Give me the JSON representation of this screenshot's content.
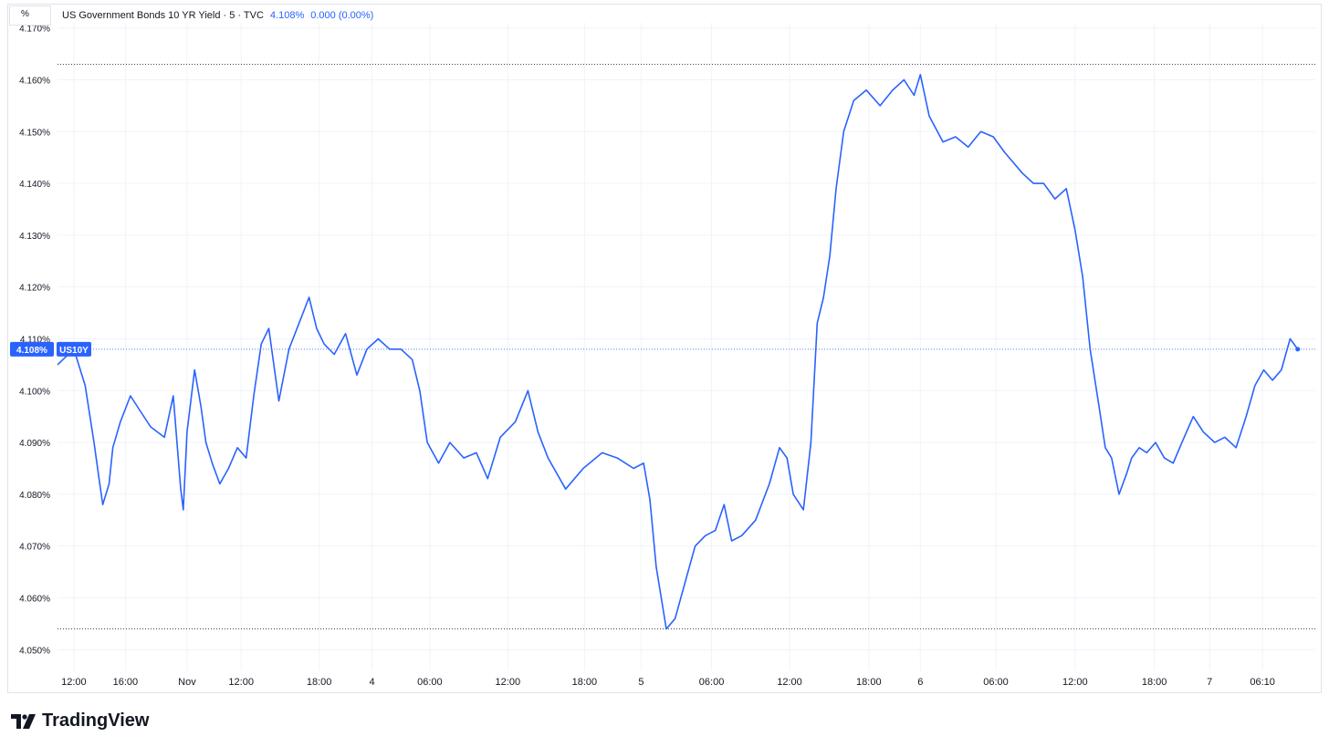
{
  "header": {
    "unit_button": "%",
    "symbol_title": "US Government Bonds 10 YR Yield · 5 · TVC",
    "last_value": "4.108%",
    "change": "0.000 (0.00%)"
  },
  "price_tag": {
    "value": "4.108%",
    "symbol": "US10Y"
  },
  "brand": {
    "name": "TradingView"
  },
  "colors": {
    "line": "#2962ff",
    "grid": "#f0f3fa",
    "axis_text": "#131722",
    "border": "#e0e3eb"
  },
  "chart_data": {
    "type": "line",
    "title": "US Government Bonds 10 YR Yield · 5 · TVC",
    "ylim": [
      4.046,
      4.171
    ],
    "yticks": [
      "4.050%",
      "4.060%",
      "4.070%",
      "4.080%",
      "4.090%",
      "4.100%",
      "4.110%",
      "4.120%",
      "4.130%",
      "4.140%",
      "4.150%",
      "4.160%",
      "4.170%"
    ],
    "ytick_values": [
      4.05,
      4.06,
      4.07,
      4.08,
      4.09,
      4.1,
      4.11,
      4.12,
      4.13,
      4.14,
      4.15,
      4.16,
      4.17
    ],
    "x_index_range": [
      0,
      100
    ],
    "xticks": [
      "12:00",
      "16:00",
      "Nov",
      "12:00",
      "18:00",
      "4",
      "06:00",
      "12:00",
      "18:00",
      "5",
      "06:00",
      "12:00",
      "18:00",
      "6",
      "06:00",
      "12:00",
      "18:00",
      "7",
      "06:10"
    ],
    "xtick_positions": [
      1.3,
      5.4,
      10.3,
      14.6,
      20.8,
      25.0,
      29.6,
      35.8,
      41.9,
      46.4,
      52.0,
      58.2,
      64.5,
      68.6,
      74.6,
      80.9,
      87.2,
      91.6,
      95.8
    ],
    "grid": true,
    "reference_lines": {
      "high": 4.163,
      "low": 4.054,
      "last": 4.108
    },
    "series": [
      {
        "x": [
          0,
          1.3,
          2.2,
          2.9,
          3.3,
          3.6,
          4.1,
          4.4,
          5.0,
          5.8,
          6.6,
          7.4,
          8.5,
          9.2,
          9.8,
          10.0,
          10.3,
          10.9,
          11.4,
          11.8,
          12.3,
          12.9,
          13.6,
          14.3,
          15.0,
          15.6,
          16.2,
          16.8,
          17.6,
          18.4,
          19.2,
          20.0,
          20.6,
          21.2,
          22.0,
          22.9,
          23.8,
          24.6,
          25.5,
          26.4,
          27.3,
          28.2,
          28.8,
          29.4,
          30.3,
          31.2,
          32.3,
          33.3,
          34.2,
          35.2,
          36.4,
          37.4,
          38.2,
          39.0,
          40.4,
          41.8,
          43.3,
          44.5,
          45.8,
          46.6,
          47.1,
          47.6,
          48.4,
          49.1,
          49.9,
          50.7,
          51.5,
          52.3,
          53.0,
          53.6,
          54.4,
          55.5,
          56.6,
          57.4,
          58.0,
          58.5,
          59.3,
          59.9,
          60.4,
          60.9,
          61.4,
          61.9,
          62.5,
          63.3,
          64.3,
          65.4,
          66.4,
          67.3,
          68.1,
          68.6,
          69.3,
          70.4,
          71.4,
          72.4,
          73.4,
          74.4,
          75.3,
          76.0,
          76.7,
          77.6,
          78.4,
          79.3,
          80.2,
          80.9,
          81.5,
          82.1,
          82.8,
          83.3,
          83.8,
          84.4,
          85.0,
          85.4,
          86.0,
          86.6,
          87.3,
          88.0,
          88.7,
          89.4,
          90.3,
          91.1,
          92.0,
          92.8,
          93.7,
          94.5,
          95.2,
          95.9,
          96.6,
          97.3,
          98.0,
          98.6
        ],
        "y": [
          4.105,
          4.108,
          4.101,
          4.09,
          4.083,
          4.078,
          4.082,
          4.089,
          4.094,
          4.099,
          4.096,
          4.093,
          4.091,
          4.099,
          4.081,
          4.077,
          4.092,
          4.104,
          4.097,
          4.09,
          4.086,
          4.082,
          4.085,
          4.089,
          4.087,
          4.099,
          4.109,
          4.112,
          4.098,
          4.108,
          4.113,
          4.118,
          4.112,
          4.109,
          4.107,
          4.111,
          4.103,
          4.108,
          4.11,
          4.108,
          4.108,
          4.106,
          4.1,
          4.09,
          4.086,
          4.09,
          4.087,
          4.088,
          4.083,
          4.091,
          4.094,
          4.1,
          4.092,
          4.087,
          4.081,
          4.085,
          4.088,
          4.087,
          4.085,
          4.086,
          4.079,
          4.066,
          4.054,
          4.056,
          4.063,
          4.07,
          4.072,
          4.073,
          4.078,
          4.071,
          4.072,
          4.075,
          4.082,
          4.089,
          4.087,
          4.08,
          4.077,
          4.09,
          4.113,
          4.118,
          4.126,
          4.139,
          4.15,
          4.156,
          4.158,
          4.155,
          4.158,
          4.16,
          4.157,
          4.161,
          4.153,
          4.148,
          4.149,
          4.147,
          4.15,
          4.149,
          4.146,
          4.144,
          4.142,
          4.14,
          4.14,
          4.137,
          4.139,
          4.131,
          4.122,
          4.108,
          4.097,
          4.089,
          4.087,
          4.08,
          4.084,
          4.087,
          4.089,
          4.088,
          4.09,
          4.087,
          4.086,
          4.09,
          4.095,
          4.092,
          4.09,
          4.091,
          4.089,
          4.095,
          4.101,
          4.104,
          4.102,
          4.104,
          4.11,
          4.108
        ]
      }
    ]
  }
}
